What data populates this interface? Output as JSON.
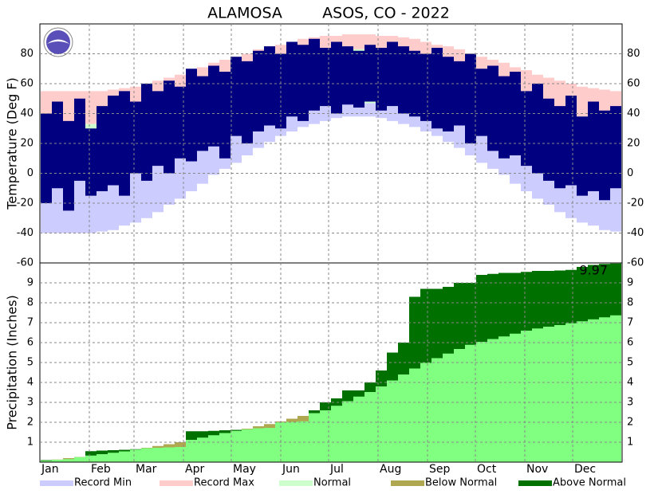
{
  "title": "ALAMOSA",
  "subtitle": "ASOS, CO - 2022",
  "legend": [
    {
      "name": "Record Min",
      "color": "#ccccff"
    },
    {
      "name": "Record Max",
      "color": "#ffcccc"
    },
    {
      "name": "Normal",
      "color": "#ccffcc"
    },
    {
      "name": "Below Normal",
      "color": "#b0a850"
    },
    {
      "name": "Above Normal",
      "color": "#007000"
    }
  ],
  "chart_data": [
    {
      "type": "temperature-range",
      "ylabel": "Temperature (Deg F)",
      "observed_color": "#000080",
      "xlim": [
        0,
        365
      ],
      "ylim": [
        -60,
        100
      ],
      "yticks": [
        -60,
        -40,
        -20,
        0,
        20,
        40,
        60,
        80
      ],
      "grid": true,
      "x": [
        4,
        11,
        18,
        25,
        32,
        39,
        46,
        53,
        60,
        67,
        74,
        81,
        88,
        95,
        102,
        109,
        116,
        123,
        130,
        137,
        144,
        151,
        158,
        165,
        172,
        179,
        186,
        193,
        200,
        207,
        214,
        221,
        228,
        235,
        242,
        249,
        256,
        263,
        270,
        277,
        284,
        291,
        298,
        305,
        312,
        319,
        326,
        333,
        340,
        347,
        354,
        361
      ],
      "record_max": [
        55,
        55,
        55,
        55,
        55,
        55,
        56,
        57,
        58,
        60,
        62,
        64,
        66,
        69,
        71,
        74,
        76,
        78,
        80,
        83,
        85,
        86,
        88,
        90,
        91,
        92,
        92,
        93,
        93,
        93,
        92,
        92,
        91,
        90,
        88,
        86,
        85,
        83,
        80,
        78,
        76,
        74,
        71,
        69,
        66,
        64,
        62,
        60,
        58,
        57,
        56,
        55
      ],
      "normal_high": [
        33,
        33,
        33,
        33,
        33,
        34,
        35,
        36,
        38,
        40,
        42,
        45,
        48,
        51,
        54,
        58,
        60,
        63,
        66,
        69,
        72,
        74,
        77,
        78,
        80,
        81,
        82,
        83,
        83,
        83,
        82,
        81,
        80,
        78,
        77,
        74,
        72,
        69,
        66,
        63,
        60,
        58,
        54,
        51,
        48,
        45,
        42,
        40,
        38,
        36,
        35,
        34
      ],
      "normal_low": [
        -3,
        -3,
        -3,
        -3,
        -3,
        -2,
        -1,
        0,
        2,
        4,
        6,
        9,
        12,
        15,
        18,
        22,
        24,
        27,
        30,
        33,
        36,
        38,
        41,
        42,
        44,
        45,
        46,
        47,
        47,
        47,
        46,
        45,
        44,
        42,
        41,
        38,
        36,
        33,
        30,
        27,
        24,
        22,
        18,
        15,
        12,
        9,
        6,
        4,
        2,
        0,
        -1,
        -2
      ],
      "record_min": [
        -40,
        -40,
        -40,
        -40,
        -40,
        -39,
        -38,
        -35,
        -33,
        -30,
        -26,
        -21,
        -17,
        -12,
        -7,
        -1,
        3,
        7,
        12,
        17,
        21,
        25,
        28,
        31,
        33,
        35,
        37,
        38,
        38,
        38,
        37,
        35,
        33,
        31,
        28,
        25,
        21,
        17,
        12,
        7,
        3,
        -1,
        -7,
        -12,
        -17,
        -21,
        -26,
        -30,
        -33,
        -35,
        -38,
        -39
      ],
      "observed_high": [
        40,
        48,
        35,
        50,
        30,
        45,
        52,
        55,
        48,
        60,
        55,
        62,
        58,
        70,
        65,
        72,
        68,
        78,
        75,
        82,
        85,
        80,
        88,
        86,
        90,
        84,
        88,
        85,
        82,
        86,
        84,
        88,
        85,
        82,
        80,
        84,
        78,
        75,
        80,
        70,
        72,
        65,
        68,
        55,
        60,
        50,
        45,
        52,
        38,
        48,
        42,
        45
      ],
      "observed_low": [
        -20,
        -10,
        -25,
        -5,
        -15,
        -12,
        -8,
        -15,
        0,
        -5,
        5,
        0,
        10,
        8,
        15,
        18,
        10,
        25,
        20,
        28,
        32,
        30,
        38,
        35,
        42,
        45,
        40,
        46,
        44,
        48,
        42,
        45,
        40,
        38,
        35,
        30,
        28,
        32,
        20,
        25,
        15,
        10,
        12,
        5,
        0,
        -5,
        -10,
        -8,
        -15,
        -12,
        -18,
        -10
      ]
    },
    {
      "type": "precipitation-cumulative",
      "ylabel": "Precipitation (Inches)",
      "normal_color": "#80ff80",
      "xlim": [
        0,
        365
      ],
      "ylim": [
        0,
        10
      ],
      "yticks": [
        1,
        2,
        3,
        4,
        5,
        6,
        7,
        8,
        9
      ],
      "grid": true,
      "xticks": [
        {
          "value": 0,
          "label": "Jan"
        },
        {
          "value": 31,
          "label": "Feb"
        },
        {
          "value": 59,
          "label": "Mar"
        },
        {
          "value": 90,
          "label": "Apr"
        },
        {
          "value": 120,
          "label": "May"
        },
        {
          "value": 151,
          "label": "Jun"
        },
        {
          "value": 181,
          "label": "Jul"
        },
        {
          "value": 212,
          "label": "Aug"
        },
        {
          "value": 243,
          "label": "Sep"
        },
        {
          "value": 273,
          "label": "Oct"
        },
        {
          "value": 304,
          "label": "Nov"
        },
        {
          "value": 334,
          "label": "Dec"
        }
      ],
      "x": [
        4,
        11,
        18,
        25,
        32,
        39,
        46,
        53,
        60,
        67,
        74,
        81,
        88,
        95,
        102,
        109,
        116,
        123,
        130,
        137,
        144,
        151,
        158,
        165,
        172,
        179,
        186,
        193,
        200,
        207,
        214,
        221,
        228,
        235,
        242,
        249,
        256,
        263,
        270,
        277,
        284,
        291,
        298,
        305,
        312,
        319,
        326,
        333,
        340,
        347,
        354,
        361
      ],
      "normal": [
        0.07,
        0.13,
        0.2,
        0.26,
        0.33,
        0.4,
        0.47,
        0.54,
        0.63,
        0.72,
        0.81,
        0.9,
        1.0,
        1.12,
        1.23,
        1.35,
        1.46,
        1.57,
        1.68,
        1.8,
        1.91,
        2.04,
        2.18,
        2.32,
        2.46,
        2.6,
        2.83,
        3.06,
        3.29,
        3.52,
        3.8,
        4.1,
        4.4,
        4.7,
        4.98,
        5.22,
        5.45,
        5.68,
        5.89,
        6.04,
        6.18,
        6.31,
        6.45,
        6.6,
        6.71,
        6.8,
        6.88,
        6.97,
        7.07,
        7.17,
        7.27,
        7.37
      ],
      "observed": [
        0.1,
        0.12,
        0.15,
        0.25,
        0.55,
        0.58,
        0.6,
        0.62,
        0.65,
        0.7,
        0.72,
        0.74,
        0.76,
        1.55,
        1.55,
        1.57,
        1.6,
        1.62,
        1.65,
        1.7,
        1.72,
        2.0,
        2.02,
        2.05,
        2.6,
        3.0,
        3.2,
        3.6,
        3.6,
        4.0,
        4.6,
        5.5,
        6.0,
        8.3,
        8.7,
        8.7,
        8.8,
        9.0,
        9.0,
        9.4,
        9.45,
        9.5,
        9.5,
        9.55,
        9.6,
        9.6,
        9.62,
        9.65,
        9.8,
        9.9,
        9.95,
        9.97
      ],
      "total_label": "9.97"
    }
  ]
}
